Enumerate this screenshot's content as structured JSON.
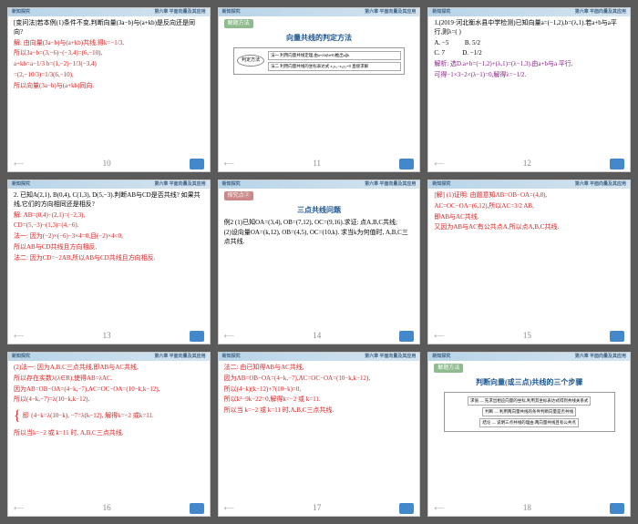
{
  "header": {
    "left": "新知探究",
    "right": "第六章 平面向量及其应用"
  },
  "slides": [
    {
      "page": 10,
      "lines": [
        {
          "cls": "black",
          "t": "[变问法]若本例(1)条件不变,判断向量(3a−b)与(a+kb)是反向还是同向?"
        },
        {
          "cls": "red",
          "t": "解: 由向量(3a−b)与(a+kb)共线,得k=−1/3,"
        },
        {
          "cls": "red",
          "t": "所以3a−b=(3,−6)−(−3,4)=(6,−10),"
        },
        {
          "cls": "red",
          "t": "a+kb=a−1/3 b=(1,−2)−1/3(−3,4)"
        },
        {
          "cls": "red",
          "t": "=(2,−10/3)=1/3(6,−10),"
        },
        {
          "cls": "red",
          "t": "所以向量(3a−b)与(a+kb)同向."
        }
      ]
    },
    {
      "page": 11,
      "box": "解题方法",
      "subtitle": "向量共线的判定方法",
      "diagram": {
        "oval": "判定方法",
        "rows": [
          "法一 利用向量共线定理,由a=λb(b≠0)推出a∥b",
          "法二 利用向量共线的坐标表达式 x₁y₂−x₂y₁=0 直接求解"
        ]
      }
    },
    {
      "page": 12,
      "lines": [
        {
          "cls": "black",
          "t": "1.(2019·河北衡水县中学检测)已知向量a=(−1,2),b=(λ,1).若a+b与a平行,则λ=( )"
        },
        {
          "cls": "black opts",
          "t": "A. −5          B. 5/2"
        },
        {
          "cls": "black opts",
          "t": "C. 7           D. −1/2"
        },
        {
          "cls": "purple",
          "t": "解析: 选D.a+b=(−1,2)+(λ,1)=(λ−1,3).由a+b与a 平行,"
        },
        {
          "cls": "purple",
          "t": "可得−1×3−2×(λ−1)=0,解得λ=−1/2."
        }
      ]
    },
    {
      "page": 13,
      "lines": [
        {
          "cls": "black",
          "t": "2. 已知A(2,1), B(0,4), C(1,3), D(5,−3).判断AB与CD是否共线? 如果共线,它们的方向相同还是相反?"
        },
        {
          "cls": "red",
          "t": "解: AB=(0,4)−(2,1)=(−2,3),"
        },
        {
          "cls": "red",
          "t": "CD=(5,−3)−(1,3)=(4,−6)."
        },
        {
          "cls": "red",
          "t": "法一: 因为(−2)×(−6)−3×4=0,且(−2)×4<0,"
        },
        {
          "cls": "red",
          "t": "所以AB与CD共线且方向相反."
        },
        {
          "cls": "red",
          "t": "法二: 因为CD=−2AB,所以AB与CD共线且方向相反."
        }
      ]
    },
    {
      "page": 14,
      "box": "探究点②",
      "boxcolor": "#c88",
      "subtitle": "三点共线问题",
      "lines": [
        {
          "cls": "black",
          "t": "例2  (1)已知OA=(3,4), OB=(7,12), OC=(9,16).求证: 点A,B,C共线;"
        },
        {
          "cls": "black",
          "t": "(2)设向量OA=(k,12), OB=(4,5), OC=(10,k). 求当k为何值时, A,B,C三点共线."
        }
      ]
    },
    {
      "page": 15,
      "lines": [
        {
          "cls": "red",
          "t": "[解] (1)证明: 由题意知AB=OB−OA=(4,8),"
        },
        {
          "cls": "red",
          "t": "AC=OC−OA=(6,12),所以AC=3/2 AB,"
        },
        {
          "cls": "red",
          "t": "即AB与AC共线."
        },
        {
          "cls": "red",
          "t": "又因为AB与AC有公共点A,所以点A,B,C共线."
        }
      ]
    },
    {
      "page": 16,
      "lines": [
        {
          "cls": "red",
          "t": "(2)法一: 因为A,B,C三点共线,即AB与AC共线,"
        },
        {
          "cls": "red",
          "t": "所以存在实数λ(λ∈R),使得AB=λAC."
        },
        {
          "cls": "red",
          "t": "因为AB=OB−OA=(4−k,−7),AC=OC−OA=(10−k,k−12),"
        },
        {
          "cls": "red",
          "t": "所以(4−k,−7)=λ(10−k,k−12),"
        },
        {
          "cls": "red bracket",
          "t": "即 {4−k=λ(10−k), −7=λ(k−12),  解得k=−2 或k=11."
        },
        {
          "cls": "red",
          "t": "所以当k=−2 或 k=11 时, A,B,C三点共线."
        }
      ]
    },
    {
      "page": 17,
      "lines": [
        {
          "cls": "red",
          "t": "法二: 由已知得AB与AC共线,"
        },
        {
          "cls": "red",
          "t": "因为AB=OB−OA=(4−k,−7),AC=OC−OA=(10−k,k−12),"
        },
        {
          "cls": "red",
          "t": "所以(4−k)(k−12)+7(10−k)=0,"
        },
        {
          "cls": "red",
          "t": "所以k²−9k−22=0,解得k=−2 或 k=11."
        },
        {
          "cls": "red",
          "t": "所以当 k=−2 或 k=11 时,A,B,C三点共线."
        }
      ]
    },
    {
      "page": 18,
      "box": "解题方法",
      "subtitle": "判断向量(或三点)共线的三个步骤",
      "diagram2": {
        "rows": [
          "求值 — 先求出相应向量的坐标,利用其坐标表达式得到共线关系式",
          "判断 — 利用两向量共线的条件判断向量是否共线",
          "结论 — 说明三点共线的理由:两向量共线且有公共点"
        ]
      }
    }
  ]
}
